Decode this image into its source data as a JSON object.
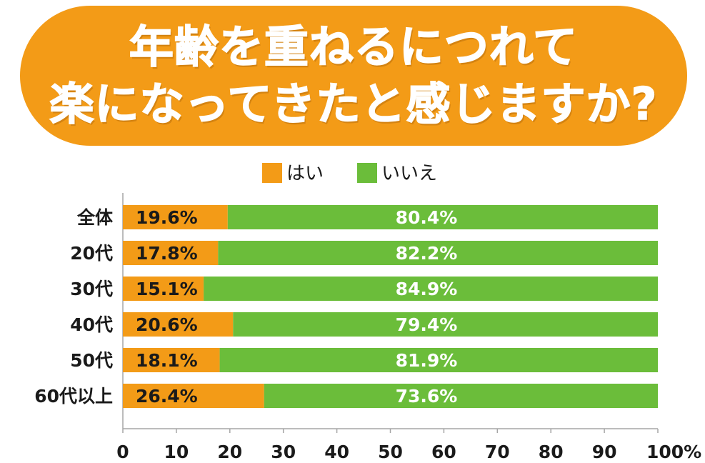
{
  "colors": {
    "title_bg": "#f39b17",
    "yes": "#f39b17",
    "no": "#6bbd3a",
    "axis": "#a6a6a6",
    "text": "#1a1a1a",
    "yes_label": "#1a1a1a",
    "no_label": "#ffffff"
  },
  "chart_data": {
    "type": "bar",
    "orientation": "horizontal",
    "stacked": true,
    "title": "年齢を重ねるにつれて楽になってきたと感じますか?",
    "title_lines": [
      "年齢を重ねるにつれて",
      "楽になってきたと感じますか?"
    ],
    "categories": [
      "全体",
      "20代",
      "30代",
      "40代",
      "50代",
      "60代以上"
    ],
    "series": [
      {
        "name": "はい",
        "values": [
          19.6,
          17.8,
          15.1,
          20.6,
          18.1,
          26.4
        ],
        "labels": [
          "19.6%",
          "17.8%",
          "15.1%",
          "20.6%",
          "18.1%",
          "26.4%"
        ]
      },
      {
        "name": "いいえ",
        "values": [
          80.4,
          82.2,
          84.9,
          79.4,
          81.9,
          73.6
        ],
        "labels": [
          "80.4%",
          "82.2%",
          "84.9%",
          "79.4%",
          "81.9%",
          "73.6%"
        ]
      }
    ],
    "xlim": [
      0,
      100
    ],
    "x_ticks": [
      "0",
      "10",
      "20",
      "30",
      "40",
      "50",
      "60",
      "70",
      "80",
      "90",
      "100%"
    ],
    "legend_position": "top-center",
    "grid": false
  }
}
